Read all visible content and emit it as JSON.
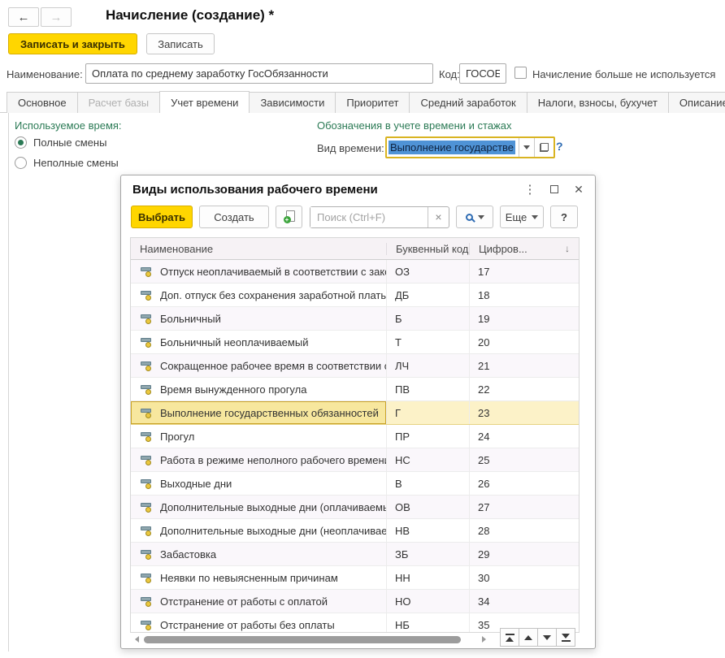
{
  "window": {
    "title": "Начисление (создание) *",
    "nav": {
      "back": "←",
      "forward": "→"
    },
    "toolbar": {
      "save_close": "Записать и закрыть",
      "save": "Записать"
    },
    "fields": {
      "name_label": "Наименование:",
      "name_value": "Оплата по среднему заработку ГосОбязанности",
      "code_label": "Код:",
      "code_value": "ГОСОБ",
      "not_used_label": "Начисление больше не используется",
      "not_used_checked": false
    },
    "tabs": [
      {
        "label": "Основное",
        "state": "normal"
      },
      {
        "label": "Расчет базы",
        "state": "disabled"
      },
      {
        "label": "Учет времени",
        "state": "active"
      },
      {
        "label": "Зависимости",
        "state": "normal"
      },
      {
        "label": "Приоритет",
        "state": "normal"
      },
      {
        "label": "Средний заработок",
        "state": "normal"
      },
      {
        "label": "Налоги, взносы, бухучет",
        "state": "normal"
      },
      {
        "label": "Описание",
        "state": "normal"
      }
    ],
    "time_tab": {
      "used_time_heading": "Используемое время:",
      "radios": [
        {
          "label": "Полные смены",
          "selected": true
        },
        {
          "label": "Неполные смены",
          "selected": false
        }
      ],
      "designation_heading": "Обозначения в учете времени и стажах",
      "time_kind_label": "Вид времени:",
      "time_kind_value": "Выполнение государстве",
      "help": "?"
    }
  },
  "dialog": {
    "title": "Виды использования рабочего времени",
    "controls": {
      "menu": "⋮",
      "close": "✕"
    },
    "toolbar": {
      "select": "Выбрать",
      "create": "Создать",
      "search_placeholder": "Поиск (Ctrl+F)",
      "search_value": "",
      "clear": "×",
      "more": "Еще",
      "help": "?"
    },
    "table": {
      "columns": {
        "name": "Наименование",
        "letter": "Буквенный код",
        "digit": "Цифров...",
        "sort_icon": "↓"
      },
      "rows": [
        {
          "name": "Отпуск неоплачиваемый в соответствии с законом",
          "letter": "ОЗ",
          "digit": "17",
          "selected": false
        },
        {
          "name": "Доп. отпуск без сохранения заработной платы",
          "letter": "ДБ",
          "digit": "18",
          "selected": false
        },
        {
          "name": "Больничный",
          "letter": "Б",
          "digit": "19",
          "selected": false
        },
        {
          "name": "Больничный неоплачиваемый",
          "letter": "Т",
          "digit": "20",
          "selected": false
        },
        {
          "name": "Сокращенное рабочее время в соответствии с з...",
          "letter": "ЛЧ",
          "digit": "21",
          "selected": false
        },
        {
          "name": "Время вынужденного прогула",
          "letter": "ПВ",
          "digit": "22",
          "selected": false
        },
        {
          "name": "Выполнение государственных обязанностей",
          "letter": "Г",
          "digit": "23",
          "selected": true
        },
        {
          "name": "Прогул",
          "letter": "ПР",
          "digit": "24",
          "selected": false
        },
        {
          "name": "Работа в режиме неполного рабочего времени",
          "letter": "НС",
          "digit": "25",
          "selected": false
        },
        {
          "name": "Выходные дни",
          "letter": "В",
          "digit": "26",
          "selected": false
        },
        {
          "name": "Дополнительные выходные дни (оплачиваемые)",
          "letter": "ОВ",
          "digit": "27",
          "selected": false
        },
        {
          "name": "Дополнительные выходные дни (неоплачиваемые)",
          "letter": "НВ",
          "digit": "28",
          "selected": false
        },
        {
          "name": "Забастовка",
          "letter": "ЗБ",
          "digit": "29",
          "selected": false
        },
        {
          "name": "Неявки по невыясненным причинам",
          "letter": "НН",
          "digit": "30",
          "selected": false
        },
        {
          "name": "Отстранение от работы с оплатой",
          "letter": "НО",
          "digit": "34",
          "selected": false
        },
        {
          "name": "Отстранение от работы без оплаты",
          "letter": "НБ",
          "digit": "35",
          "selected": false
        }
      ]
    }
  },
  "colors": {
    "accent_yellow": "#ffd600",
    "highlight_border": "#d9b422",
    "selected_row_bg": "#fcf2c8",
    "selected_cell_bg": "#f7e79e",
    "green_heading": "#2b7a55",
    "selection_blue": "#4f93d6",
    "help_blue": "#2f6cb3"
  }
}
